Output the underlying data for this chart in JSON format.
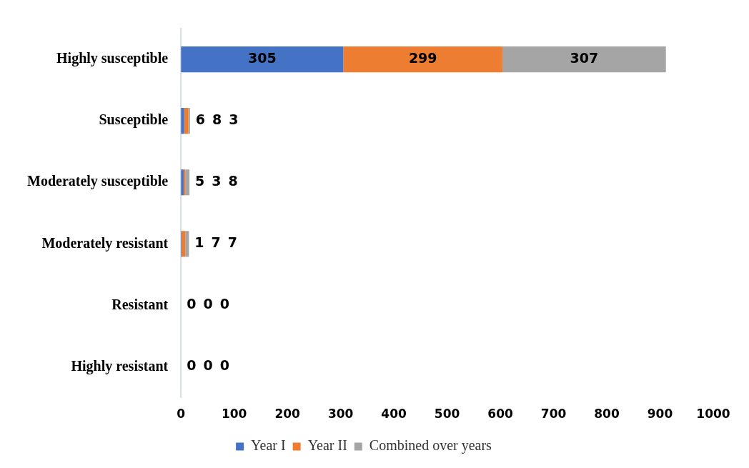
{
  "chart_data": {
    "type": "bar",
    "orientation": "horizontal",
    "stacked": true,
    "categories": [
      "Highly susceptible",
      "Susceptible",
      "Moderately susceptible",
      "Moderately resistant",
      "Resistant",
      "Highly resistant"
    ],
    "series": [
      {
        "name": "Year I",
        "color": "#4472c4",
        "values": [
          305,
          6,
          5,
          1,
          0,
          0
        ]
      },
      {
        "name": "Year II",
        "color": "#ed7d31",
        "values": [
          299,
          8,
          3,
          7,
          0,
          0
        ]
      },
      {
        "name": "Combined over years",
        "color": "#a5a5a5",
        "values": [
          307,
          3,
          8,
          7,
          0,
          0
        ]
      }
    ],
    "xlim": [
      0,
      1000
    ],
    "xticks": [
      0,
      100,
      200,
      300,
      400,
      500,
      600,
      700,
      800,
      900,
      1000
    ],
    "grid": false,
    "legend": "bottom",
    "data_labels": true
  }
}
